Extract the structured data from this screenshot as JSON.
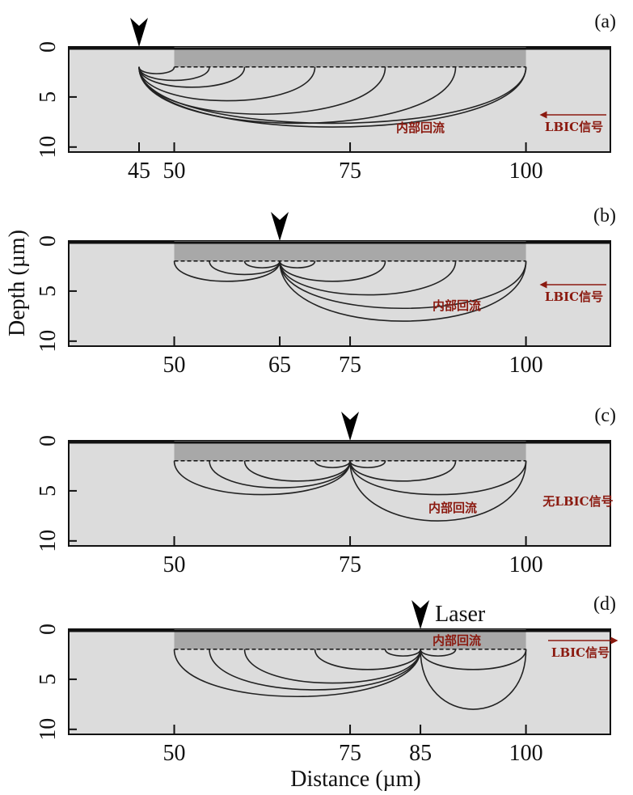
{
  "y_axis_label": "Depth (µm)",
  "x_axis_label": "Distance (µm)",
  "laser_label": "Laser",
  "panels": [
    {
      "label": "(a)",
      "xlim": [
        35,
        112
      ],
      "ylim": [
        0,
        10.5
      ],
      "xticks": [
        45,
        50,
        75,
        100
      ],
      "yticks": [
        0,
        5,
        10
      ],
      "laser_position": 45,
      "annotations": [
        "内部回流",
        "LBIC信号"
      ]
    },
    {
      "label": "(b)",
      "xlim": [
        35,
        112
      ],
      "ylim": [
        0,
        10.5
      ],
      "xticks": [
        50,
        65,
        75,
        100
      ],
      "yticks": [
        0,
        5,
        10
      ],
      "laser_position": 65,
      "annotations": [
        "内部回流",
        "LBIC信号"
      ]
    },
    {
      "label": "(c)",
      "xlim": [
        35,
        112
      ],
      "ylim": [
        0,
        10.5
      ],
      "xticks": [
        50,
        75,
        100
      ],
      "yticks": [
        0,
        5,
        10
      ],
      "laser_position": 75,
      "annotations": [
        "内部回流",
        "无LBIC信号"
      ]
    },
    {
      "label": "(d)",
      "xlim": [
        35,
        112
      ],
      "ylim": [
        0,
        10.5
      ],
      "xticks": [
        50,
        75,
        85,
        100
      ],
      "yticks": [
        0,
        5,
        10
      ],
      "laser_position": 85,
      "annotations": [
        "内部回流",
        "LBIC信号"
      ]
    }
  ]
}
